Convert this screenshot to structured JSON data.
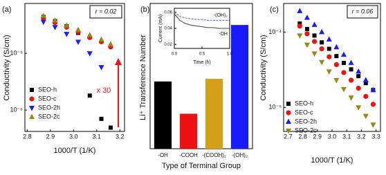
{
  "chart_data": [
    {
      "type": "scatter",
      "label": "(a)",
      "xlabel": "1000/T (1/K)",
      "ylabel": "Conductivity (S/cm)",
      "yscale": "log",
      "xlim": [
        2.79,
        3.22
      ],
      "ylim": [
        4.2e-07,
        7.6e-05
      ],
      "xticks": [
        2.8,
        2.9,
        {
          "value": 3,
          "label": "3.0"
        },
        3.1,
        3.2
      ],
      "yticks": [
        {
          "value": 1e-06,
          "label": "10⁻⁶"
        },
        {
          "value": 1e-05,
          "label": "10⁻⁵"
        }
      ],
      "legend": "lower left",
      "annotations": [
        "r = 0.02",
        "x 30"
      ],
      "series": [
        {
          "name": "SEO-h",
          "color": "#000000",
          "marker": "square",
          "x": [
            2.87,
            2.92,
            2.97,
            3.02,
            3.07,
            3.12,
            3.16
          ],
          "values": [
            4.4e-05,
            3.7e-05,
            3e-05,
            2.3e-05,
            1.8e-06,
            7e-07,
            4.9e-07
          ]
        },
        {
          "name": "SEO-c",
          "color": "#ee1111",
          "marker": "circle",
          "x": [
            2.87,
            2.92,
            2.97,
            3.02,
            3.07,
            3.12,
            3.16
          ],
          "values": [
            4.2e-05,
            3.5e-05,
            2.9e-05,
            2.4e-05,
            1.9e-05,
            1.6e-05,
            1.3e-05
          ]
        },
        {
          "name": "SEO-2h",
          "color": "#1a1aff",
          "marker": "triangle-down",
          "x": [
            2.87,
            2.92,
            2.97,
            3.02,
            3.07,
            3.12
          ],
          "values": [
            3.6e-05,
            2.9e-05,
            2.2e-05,
            1.6e-05,
            1e-05,
            5.7e-06
          ]
        },
        {
          "name": "SEO-2c",
          "color": "#8f8a10",
          "marker": "triangle-up",
          "x": [
            2.87,
            2.92,
            2.97,
            3.02,
            3.07,
            3.12,
            3.16
          ],
          "values": [
            4.6e-05,
            3.8e-05,
            3.1e-05,
            2.6e-05,
            2.1e-05,
            1.75e-05,
            1.45e-05
          ]
        }
      ]
    },
    {
      "type": "bar",
      "label": "(b)",
      "xlabel": "Type of Terminal Group",
      "ylabel": "Li⁺ Transference Number",
      "ylim": [
        0,
        0.54
      ],
      "categories": [
        "-OH",
        "-COOH",
        "-(COOH)₂",
        "-(OH)₂"
      ],
      "values": [
        0.25,
        0.13,
        0.26,
        0.46
      ],
      "colors": [
        "#000000",
        "#ee1111",
        "#d4a017",
        "#1a1aff"
      ],
      "inset": {
        "type": "line",
        "xlabel": "Time (h)",
        "ylabel": "Current (mA)",
        "xlim": [
          0,
          1
        ],
        "ylim": [
          0.015,
          0.065
        ],
        "xticks": [
          {
            "value": 0,
            "label": "0.0"
          },
          {
            "value": 0.5,
            "label": "0.5"
          },
          {
            "value": 1,
            "label": "1.0"
          }
        ],
        "yticks": [
          0.02,
          0.04,
          0.06
        ],
        "x": [
          0,
          0.1,
          0.2,
          0.3,
          0.4,
          0.5,
          0.6,
          0.7,
          0.8,
          0.9,
          1
        ],
        "series": [
          {
            "name": "-(OH)₂",
            "color": "#5060d0",
            "values": [
              0.06,
              0.055,
              0.053,
              0.052,
              0.051,
              0.051,
              0.05,
              0.05,
              0.05,
              0.05,
              0.05
            ]
          },
          {
            "name": "-OH",
            "color": "#404050",
            "values": [
              0.058,
              0.05,
              0.046,
              0.044,
              0.043,
              0.042,
              0.041,
              0.041,
              0.04,
              0.04,
              0.04
            ]
          }
        ]
      }
    },
    {
      "type": "scatter",
      "label": "(c)",
      "xlabel": "1000/T (1/K)",
      "ylabel": "Conductivity (S/cm)",
      "yscale": "log",
      "xlim": [
        2.67,
        3.33
      ],
      "ylim": [
        4.8e-06,
        0.00024
      ],
      "xticks": [
        2.7,
        2.8,
        2.9,
        {
          "value": 3,
          "label": "3.0"
        },
        3.1,
        3.2,
        3.3
      ],
      "yticks": [
        {
          "value": 1e-05,
          "label": "10⁻⁵"
        },
        {
          "value": 0.0001,
          "label": "10⁻⁴"
        }
      ],
      "legend": "lower left",
      "annotations": [
        "r = 0.06"
      ],
      "series": [
        {
          "name": "SEO-h",
          "color": "#000000",
          "marker": "square",
          "x": [
            2.78,
            2.83,
            2.88,
            2.93,
            2.98,
            3.03,
            3.08,
            3.13,
            3.18,
            3.23,
            3.28
          ],
          "values": [
            0.00013,
            0.00011,
            9e-05,
            7.3e-05,
            6e-05,
            4.8e-05,
            3.9e-05,
            3.2e-05,
            2.6e-05,
            2.1e-05,
            1.7e-05
          ]
        },
        {
          "name": "SEO-c",
          "color": "#ee1111",
          "marker": "circle",
          "x": [
            2.78,
            2.83,
            2.88,
            2.93,
            2.98,
            3.03,
            3.08,
            3.13,
            3.18,
            3.23,
            3.28
          ],
          "values": [
            0.00012,
            9.5e-05,
            7.5e-05,
            6e-05,
            4.7e-05,
            3.7e-05,
            2.9e-05,
            2.3e-05,
            1.8e-05,
            1.4e-05,
            1.1e-05
          ]
        },
        {
          "name": "SEO-2h",
          "color": "#1a1aff",
          "marker": "triangle-up",
          "x": [
            2.78,
            2.83,
            2.88,
            2.93,
            2.98,
            3.03,
            3.08,
            3.13,
            3.18,
            3.23,
            3.28
          ],
          "values": [
            0.00019,
            0.000155,
            0.000125,
            0.0001,
            8e-05,
            6.3e-05,
            5e-05,
            3.9e-05,
            3e-05,
            2.3e-05,
            1.7e-05
          ]
        },
        {
          "name": "SEO-2c",
          "color": "#8f8a10",
          "marker": "triangle-down",
          "x": [
            2.78,
            2.83,
            2.88,
            2.93,
            2.98,
            3.03,
            3.08,
            3.13,
            3.18,
            3.23,
            3.28
          ],
          "values": [
            9e-05,
            6.8e-05,
            5.2e-05,
            4e-05,
            3e-05,
            2.3e-05,
            1.75e-05,
            1.35e-05,
            1e-05,
            7.7e-06,
            5.9e-06
          ]
        }
      ]
    }
  ]
}
